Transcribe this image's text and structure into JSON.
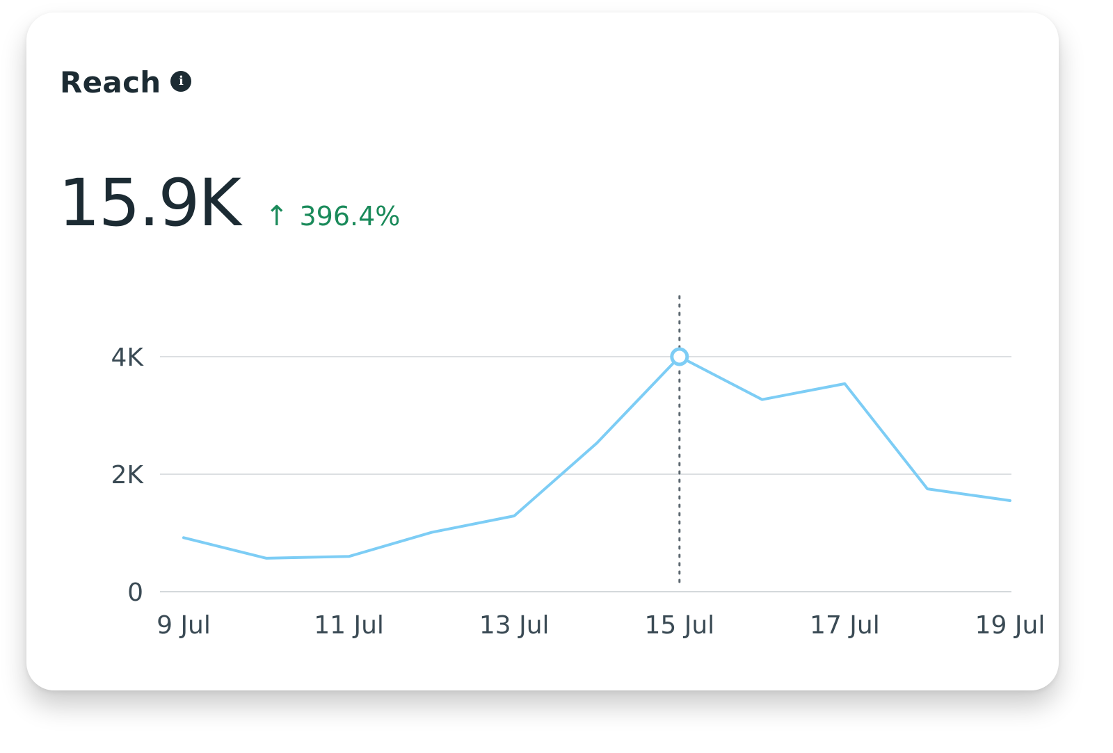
{
  "card": {
    "title": "Reach",
    "info_icon": "info-icon",
    "metric_value": "15.9K",
    "delta": {
      "direction_icon": "arrow-up-icon",
      "arrow_glyph": "↑",
      "value": "396.4%",
      "color": "#1a8a5a"
    }
  },
  "chart_data": {
    "type": "line",
    "title": "",
    "xlabel": "",
    "ylabel": "",
    "x": [
      "9 Jul",
      "10 Jul",
      "11 Jul",
      "12 Jul",
      "13 Jul",
      "14 Jul",
      "15 Jul",
      "16 Jul",
      "17 Jul",
      "18 Jul",
      "19 Jul"
    ],
    "x_ticks": [
      "9 Jul",
      "11 Jul",
      "13 Jul",
      "15 Jul",
      "17 Jul",
      "19 Jul"
    ],
    "series": [
      {
        "values": [
          920,
          570,
          600,
          1010,
          1290,
          2530,
          4000,
          3270,
          3540,
          1750,
          1550
        ],
        "color": "#7dcdf5"
      }
    ],
    "ylim": [
      0,
      4000
    ],
    "y_ticks": [
      0,
      2000,
      4000
    ],
    "y_tick_labels": [
      "0",
      "2K",
      "4K"
    ],
    "grid": true,
    "highlight": {
      "x": "15 Jul",
      "value": 4000,
      "style": "dotted-vertical-marker"
    }
  }
}
